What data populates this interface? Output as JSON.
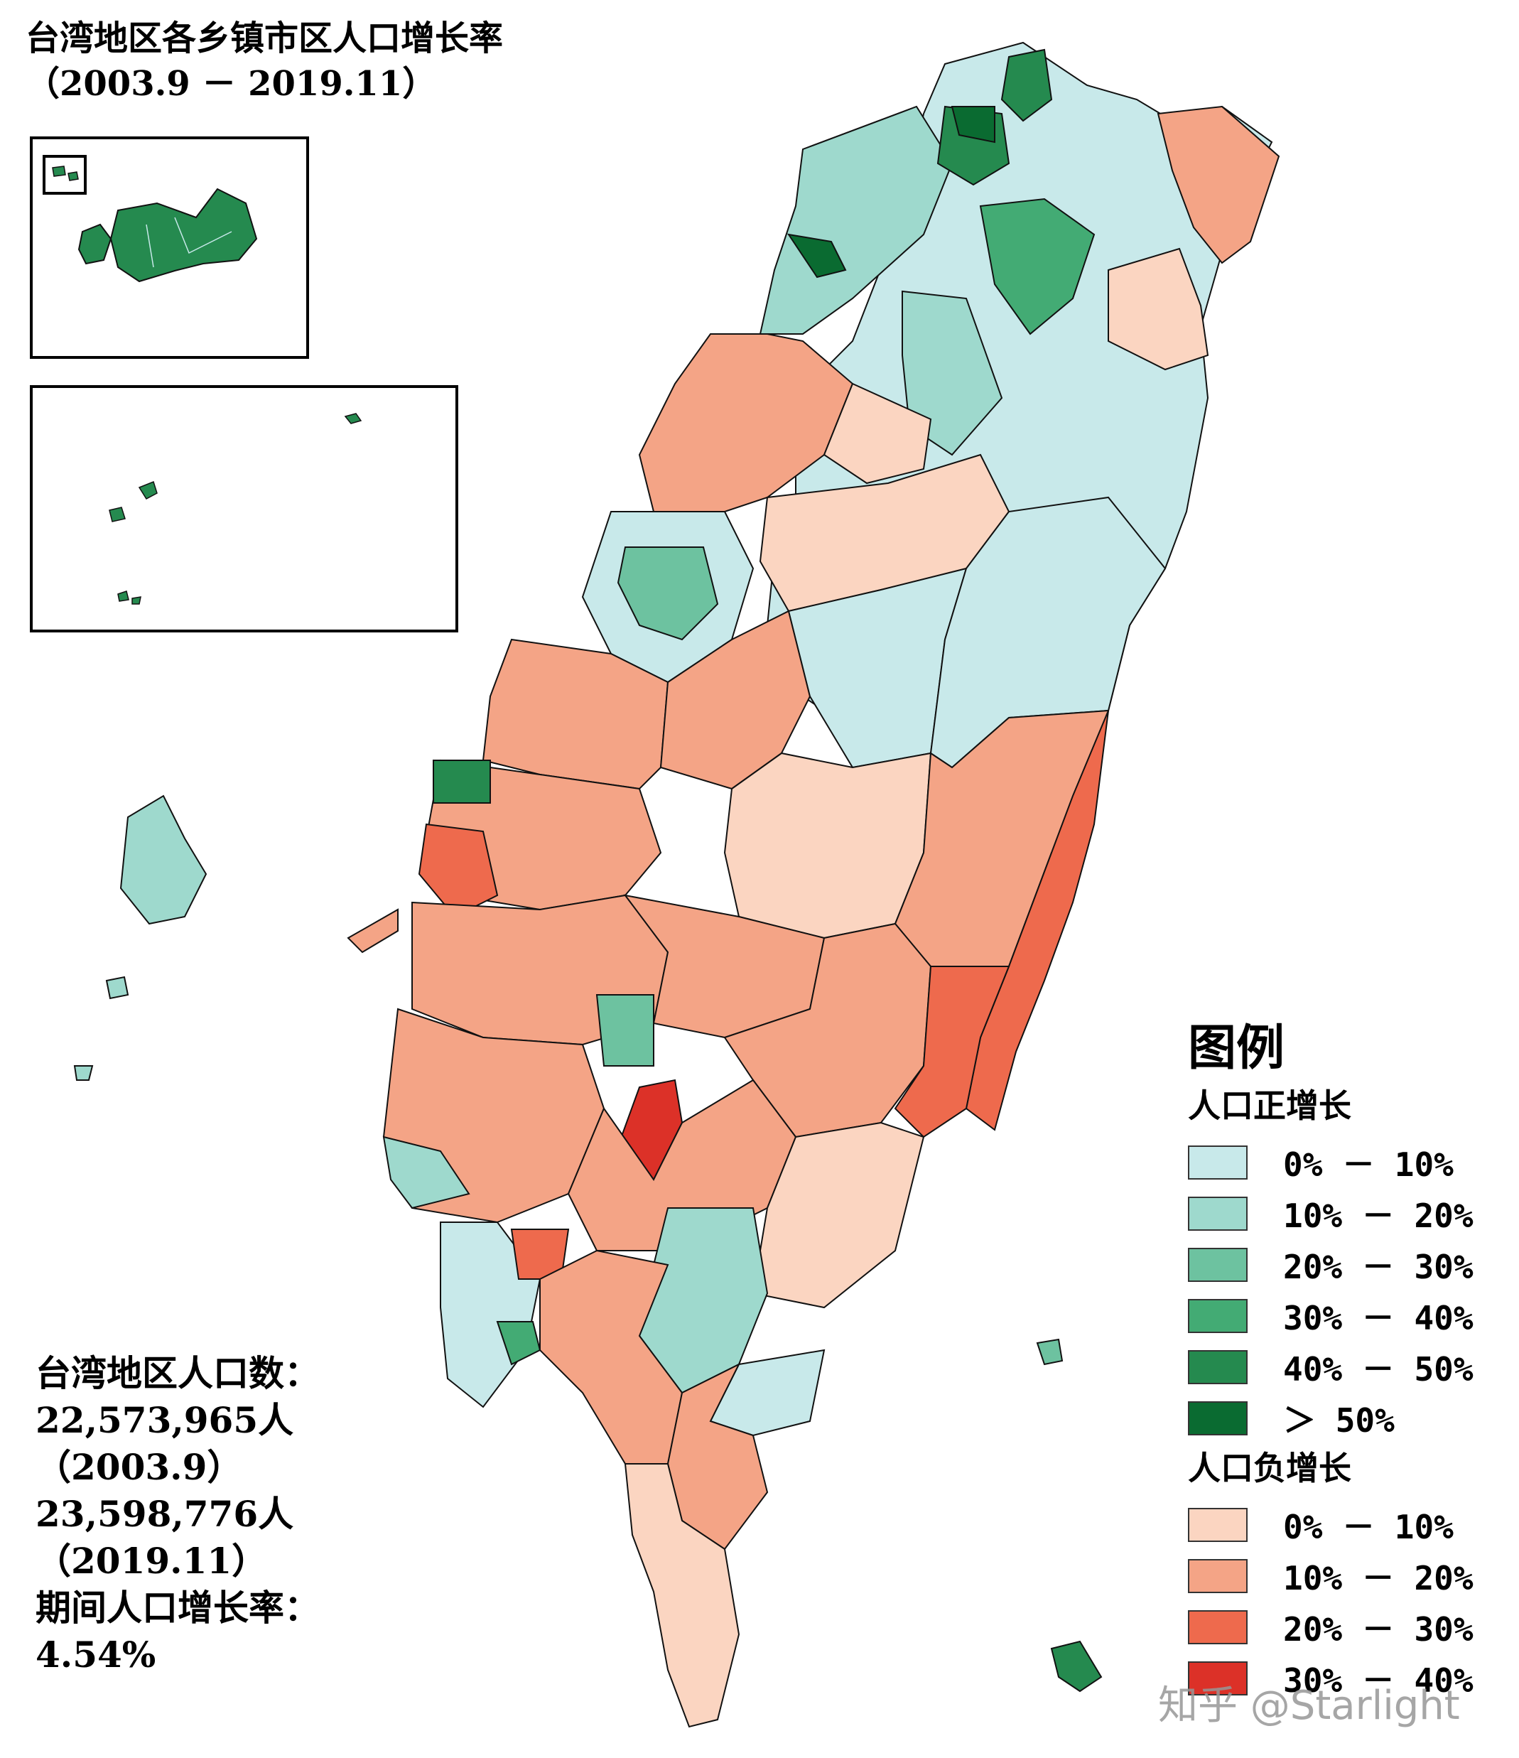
{
  "title": {
    "line1": "台湾地区各乡镇市区人口增长率",
    "line2": "（2003.9 － 2019.11）"
  },
  "stats": {
    "label": "台湾地区人口数：",
    "pop_2003": "22,573,965人",
    "date_2003": "（2003.9）",
    "pop_2019": "23,598,776人",
    "date_2019": "（2019.11）",
    "growth_label": "期间人口增长率：",
    "growth_value": "4.54%"
  },
  "legend": {
    "title": "图例",
    "positive_label": "人口正增长",
    "positive_items": [
      {
        "label": "0% － 10%",
        "color": "#c8e9ea"
      },
      {
        "label": "10% － 20%",
        "color": "#9ed9cd"
      },
      {
        "label": "20% － 30%",
        "color": "#6dc2a0"
      },
      {
        "label": "30% － 40%",
        "color": "#43ab74"
      },
      {
        "label": "40% － 50%",
        "color": "#258a4f"
      },
      {
        "label": "＞ 50%",
        "color": "#0a6b31"
      }
    ],
    "negative_label": "人口负增长",
    "negative_items": [
      {
        "label": "0% － 10%",
        "color": "#fbd5c1"
      },
      {
        "label": "10% － 20%",
        "color": "#f4a486"
      },
      {
        "label": "20% － 30%",
        "color": "#ee6a4d"
      },
      {
        "label": "30% － 40%",
        "color": "#dc3128"
      }
    ]
  },
  "watermark": "知乎 @Starlight",
  "colors": {
    "border": "#111111",
    "inset_islands": "#258a4f"
  }
}
